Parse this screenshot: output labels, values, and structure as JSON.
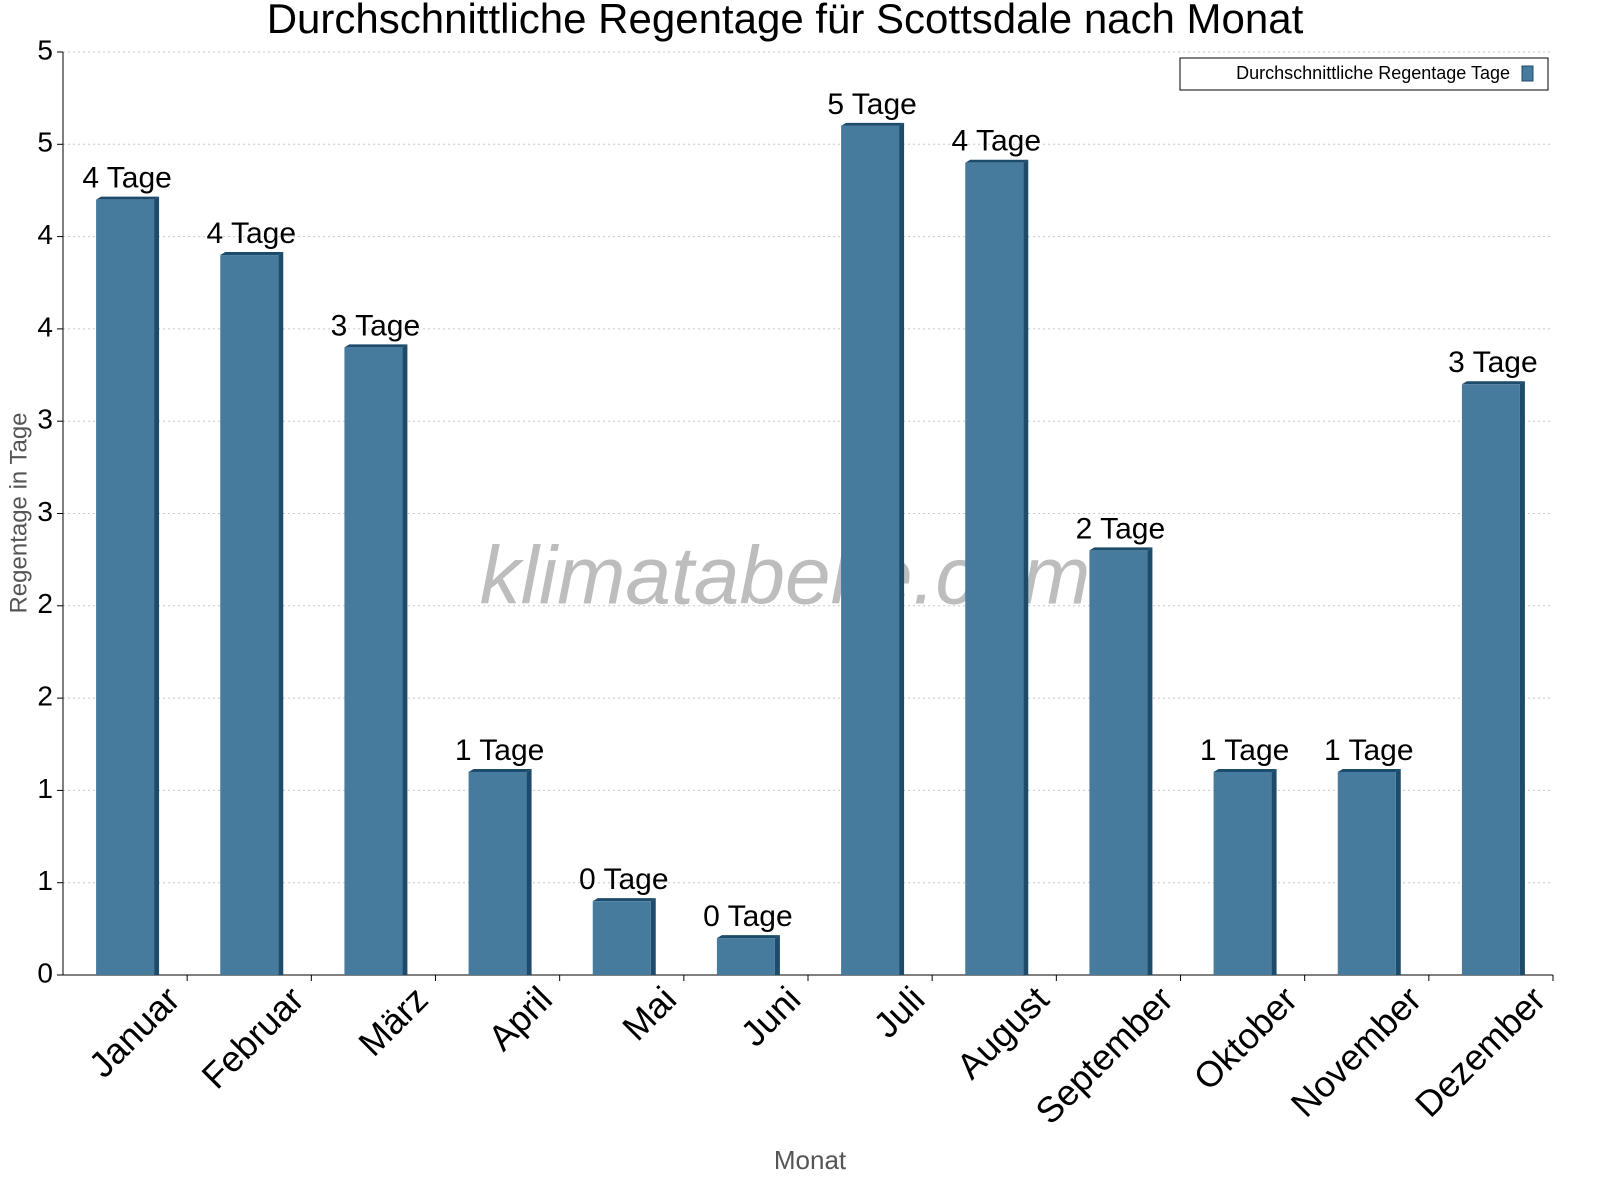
{
  "chart_data": {
    "type": "bar",
    "title": "Durchschnittliche Regentage für Scottsdale nach Monat",
    "x_label": "Monat",
    "y_label": "Regentage in Tage",
    "watermark": "klimatabelle.com",
    "categories": [
      "Januar",
      "Februar",
      "März",
      "April",
      "Mai",
      "Juni",
      "Juli",
      "August",
      "September",
      "Oktober",
      "November",
      "Dezember"
    ],
    "series": [
      {
        "name": "Durchschnittliche Regentage Tage",
        "color": "#467b9e",
        "values": [
          4.2,
          3.9,
          3.4,
          1.1,
          0.4,
          0.2,
          4.6,
          4.4,
          2.3,
          1.1,
          1.1,
          3.2
        ],
        "value_labels": [
          "4 Tage",
          "4 Tage",
          "3 Tage",
          "1 Tage",
          "0 Tage",
          "0 Tage",
          "5 Tage",
          "4 Tage",
          "2 Tage",
          "1 Tage",
          "1 Tage",
          "3 Tage"
        ]
      }
    ],
    "ylim": [
      0,
      5
    ],
    "yticks": [
      0,
      {
        "value": 0.5,
        "label": "1"
      },
      1,
      {
        "value": 1.5,
        "label": "2"
      },
      2,
      {
        "value": 2.5,
        "label": "3"
      },
      3,
      {
        "value": 3.5,
        "label": "4"
      },
      4,
      {
        "value": 4.5,
        "label": "5"
      },
      5
    ],
    "grid": true,
    "legend": "top-right"
  }
}
